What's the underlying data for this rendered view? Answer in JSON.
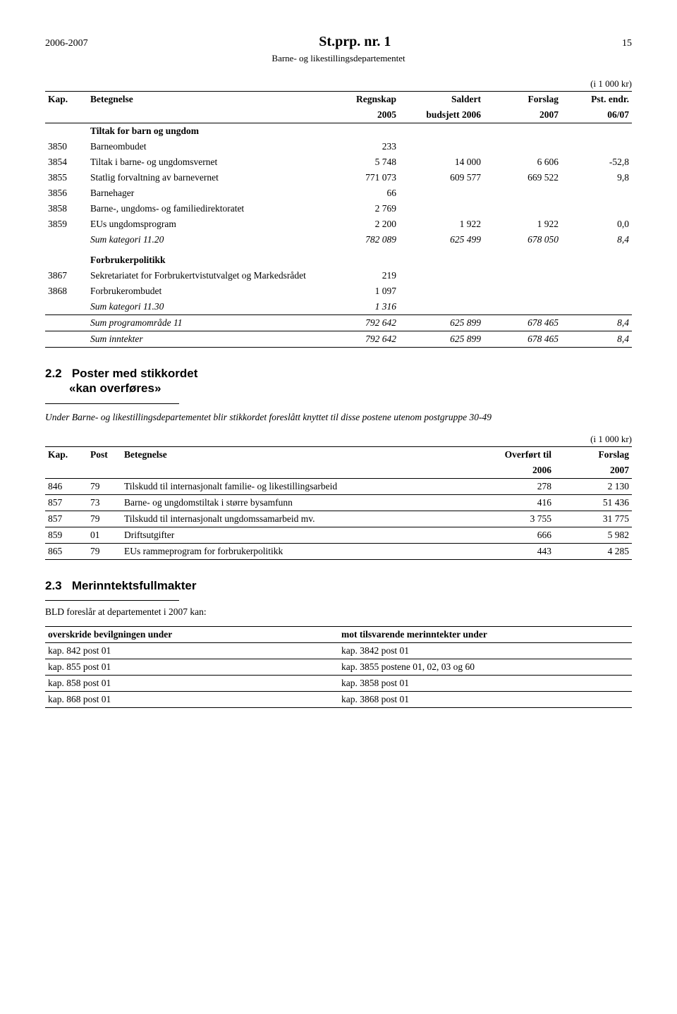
{
  "header": {
    "year_range": "2006-2007",
    "doc_title": "St.prp. nr. 1",
    "page_number": "15",
    "subtitle": "Barne- og likestillingsdepartementet"
  },
  "table1": {
    "unit": "(i 1 000 kr)",
    "cols": {
      "kap": "Kap.",
      "bet": "Betegnelse",
      "c1a": "Regnskap",
      "c1b": "2005",
      "c2a": "Saldert",
      "c2b": "budsjett 2006",
      "c3a": "Forslag",
      "c3b": "2007",
      "c4a": "Pst. endr.",
      "c4b": "06/07"
    },
    "group1_title": "Tiltak for barn og ungdom",
    "rows_group1": [
      {
        "kap": "3850",
        "bet": "Barneombudet",
        "v1": "233",
        "v2": "",
        "v3": "",
        "v4": ""
      },
      {
        "kap": "3854",
        "bet": "Tiltak i barne- og ungdomsvernet",
        "v1": "5 748",
        "v2": "14 000",
        "v3": "6 606",
        "v4": "-52,8"
      },
      {
        "kap": "3855",
        "bet": "Statlig forvaltning av barnevernet",
        "v1": "771 073",
        "v2": "609 577",
        "v3": "669 522",
        "v4": "9,8"
      },
      {
        "kap": "3856",
        "bet": "Barnehager",
        "v1": "66",
        "v2": "",
        "v3": "",
        "v4": ""
      },
      {
        "kap": "3858",
        "bet": "Barne-, ungdoms- og familiedirektoratet",
        "v1": "2 769",
        "v2": "",
        "v3": "",
        "v4": ""
      },
      {
        "kap": "3859",
        "bet": "EUs ungdomsprogram",
        "v1": "2 200",
        "v2": "1 922",
        "v3": "1 922",
        "v4": "0,0"
      }
    ],
    "sum1": {
      "label": "Sum kategori 11.20",
      "v1": "782 089",
      "v2": "625 499",
      "v3": "678 050",
      "v4": "8,4"
    },
    "group2_title": "Forbrukerpolitikk",
    "rows_group2": [
      {
        "kap": "3867",
        "bet": "Sekretariatet for Forbrukertvistutvalget og Markedsrådet",
        "v1": "219",
        "v2": "",
        "v3": "",
        "v4": ""
      },
      {
        "kap": "3868",
        "bet": "Forbrukerombudet",
        "v1": "1 097",
        "v2": "",
        "v3": "",
        "v4": ""
      }
    ],
    "sum2": {
      "label": "Sum kategori 11.30",
      "v1": "1 316",
      "v2": "",
      "v3": "",
      "v4": ""
    },
    "sum3": {
      "label": "Sum programområde 11",
      "v1": "792 642",
      "v2": "625 899",
      "v3": "678 465",
      "v4": "8,4"
    },
    "sum4": {
      "label": "Sum inntekter",
      "v1": "792 642",
      "v2": "625 899",
      "v3": "678 465",
      "v4": "8,4"
    }
  },
  "section22": {
    "num": "2.2",
    "title_l1": "Poster med stikkordet",
    "title_l2": "«kan overføres»",
    "intro": "Under Barne- og likestillingsdepartementet blir stikkordet foreslått knyttet til disse postene utenom postgruppe 30-49"
  },
  "table2": {
    "unit": "(i 1 000 kr)",
    "cols": {
      "kap": "Kap.",
      "post": "Post",
      "bet": "Betegnelse",
      "c1a": "Overført til",
      "c1b": "2006",
      "c2a": "Forslag",
      "c2b": "2007"
    },
    "rows": [
      {
        "kap": "846",
        "post": "79",
        "bet": "Tilskudd til internasjonalt familie- og likestillingsarbeid",
        "v1": "278",
        "v2": "2 130"
      },
      {
        "kap": "857",
        "post": "73",
        "bet": "Barne- og ungdomstiltak i større bysamfunn",
        "v1": "416",
        "v2": "51 436"
      },
      {
        "kap": "857",
        "post": "79",
        "bet": "Tilskudd til internasjonalt ungdomssamarbeid mv.",
        "v1": "3 755",
        "v2": "31 775"
      },
      {
        "kap": "859",
        "post": "01",
        "bet": "Driftsutgifter",
        "v1": "666",
        "v2": "5 982"
      },
      {
        "kap": "865",
        "post": "79",
        "bet": "EUs rammeprogram for forbrukerpolitikk",
        "v1": "443",
        "v2": "4 285"
      }
    ]
  },
  "section23": {
    "num": "2.3",
    "title": "Merinntektsfullmakter",
    "intro": "BLD foreslår at departementet i 2007 kan:"
  },
  "table3": {
    "h1": "overskride bevilgningen under",
    "h2": "mot tilsvarende merinntekter under",
    "rows": [
      {
        "a": "kap. 842 post 01",
        "b": "kap. 3842 post 01"
      },
      {
        "a": "kap. 855 post 01",
        "b": "kap. 3855 postene 01, 02, 03 og 60"
      },
      {
        "a": "kap. 858 post 01",
        "b": "kap. 3858 post 01"
      },
      {
        "a": "kap. 868 post 01",
        "b": "kap. 3868 post 01"
      }
    ]
  }
}
